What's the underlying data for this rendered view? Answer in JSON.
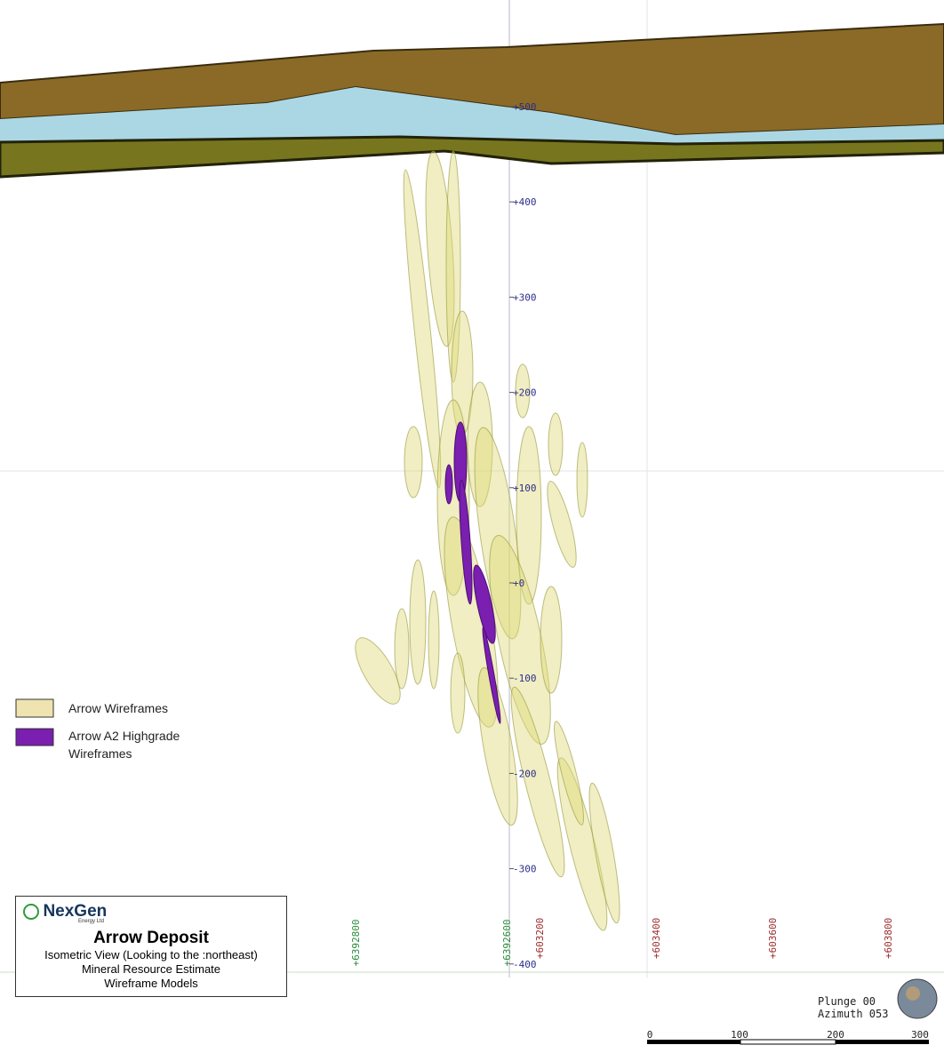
{
  "elevation_labels": [
    "+500",
    "+400",
    "+300",
    "+200",
    "+100",
    "+0",
    "-100",
    "-200",
    "-300",
    "-400"
  ],
  "northing_labels": [
    "+6392800",
    "+6392600"
  ],
  "easting_labels": [
    "+603200",
    "+603400",
    "+603600",
    "+603800"
  ],
  "legend": [
    {
      "label": "Arrow Wireframes",
      "color": "#efe3b0"
    },
    {
      "label": "Arrow A2 Highgrade Wireframes",
      "color": "#7a1fb0"
    }
  ],
  "title_box": {
    "logo": "NexGen",
    "logo_sub": "Energy Ltd",
    "title": "Arrow Deposit",
    "lines": [
      "Isometric View (Looking to the :northeast)",
      "Mineral Resource Estimate",
      "Wireframe Models"
    ]
  },
  "view": {
    "plunge": "Plunge 00",
    "azimuth": "Azimuth 053"
  },
  "scale_bar": {
    "labels": [
      "0",
      "100",
      "200",
      "300"
    ]
  }
}
